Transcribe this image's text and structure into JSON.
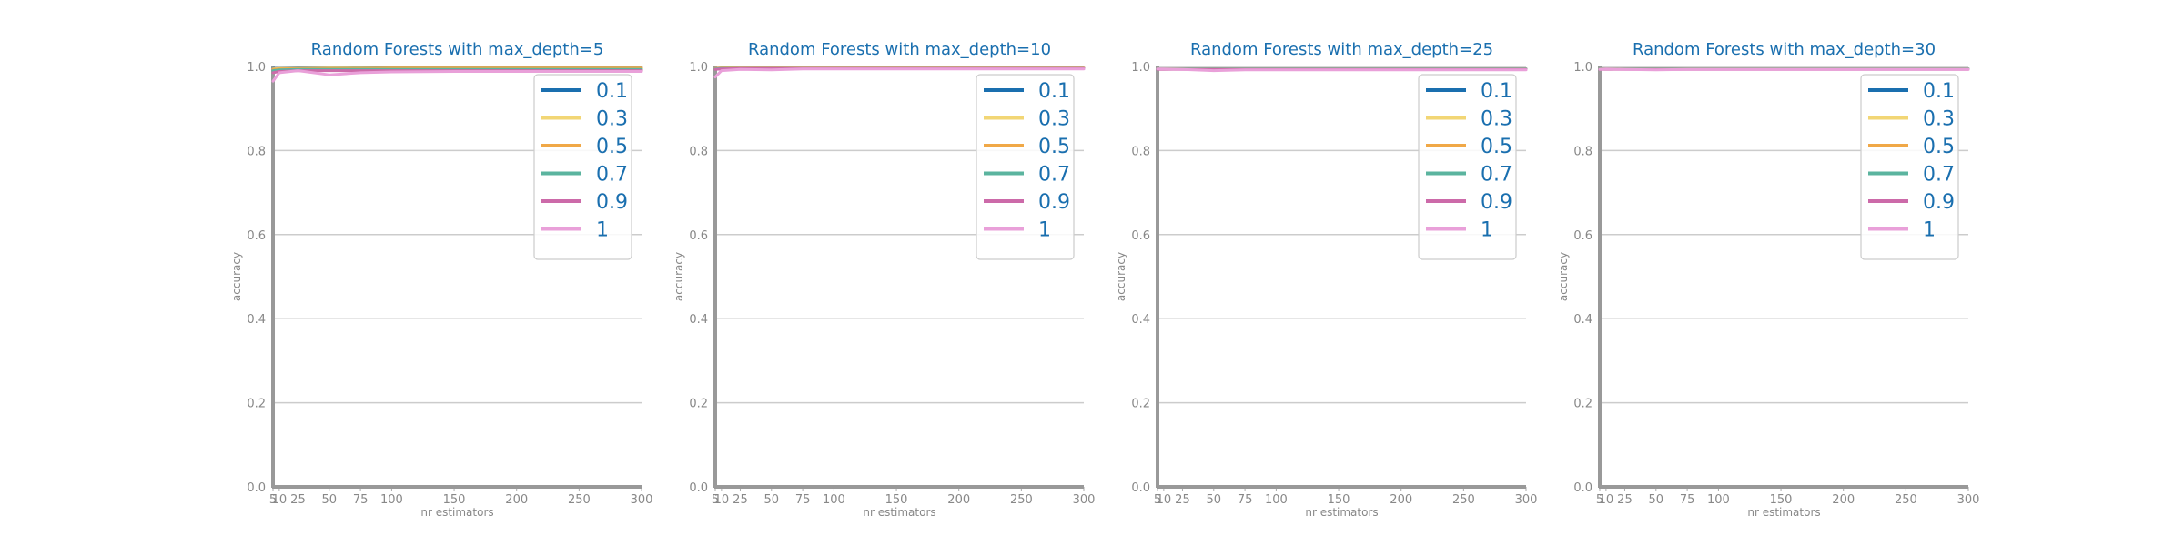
{
  "chart_data": [
    {
      "type": "line",
      "title": "Random Forests with max_depth=5",
      "xlabel": "nr estimators",
      "ylabel": "accuracy",
      "x": [
        5,
        10,
        25,
        50,
        75,
        100,
        150,
        200,
        250,
        300
      ],
      "xticks": [
        "5",
        "10",
        "25",
        "50",
        "75",
        "100",
        "150",
        "200",
        "250",
        "300"
      ],
      "yticks": [
        "0.0",
        "0.2",
        "0.4",
        "0.6",
        "0.8",
        "1.0"
      ],
      "xlim": [
        5,
        300
      ],
      "ylim": [
        0,
        1
      ],
      "grid": "horizontal",
      "legend_position": "top-right",
      "series": [
        {
          "name": "0.1",
          "color": "#1a6faf",
          "values": [
            0.995,
            0.995,
            0.996,
            0.996,
            0.997,
            0.997,
            0.997,
            0.997,
            0.997,
            0.997
          ]
        },
        {
          "name": "0.3",
          "color": "#f2d675",
          "values": [
            0.994,
            0.995,
            0.995,
            0.996,
            0.996,
            0.996,
            0.996,
            0.996,
            0.996,
            0.996
          ]
        },
        {
          "name": "0.5",
          "color": "#f0a847",
          "values": [
            0.993,
            0.994,
            0.995,
            0.995,
            0.995,
            0.996,
            0.996,
            0.996,
            0.996,
            0.996
          ]
        },
        {
          "name": "0.7",
          "color": "#5bb49f",
          "values": [
            0.99,
            0.992,
            0.993,
            0.993,
            0.993,
            0.993,
            0.993,
            0.993,
            0.993,
            0.993
          ]
        },
        {
          "name": "0.9",
          "color": "#cc6aa9",
          "values": [
            0.985,
            0.988,
            0.99,
            0.99,
            0.99,
            0.99,
            0.99,
            0.99,
            0.99,
            0.99
          ]
        },
        {
          "name": "1",
          "color": "#e9a0d9",
          "values": [
            0.965,
            0.985,
            0.99,
            0.98,
            0.985,
            0.987,
            0.988,
            0.988,
            0.988,
            0.988
          ]
        }
      ]
    },
    {
      "type": "line",
      "title": "Random Forests with max_depth=10",
      "xlabel": "nr estimators",
      "ylabel": "accuracy",
      "x": [
        5,
        10,
        25,
        50,
        75,
        100,
        150,
        200,
        250,
        300
      ],
      "xticks": [
        "5",
        "10",
        "25",
        "50",
        "75",
        "100",
        "150",
        "200",
        "250",
        "300"
      ],
      "yticks": [
        "0.0",
        "0.2",
        "0.4",
        "0.6",
        "0.8",
        "1.0"
      ],
      "xlim": [
        5,
        300
      ],
      "ylim": [
        0,
        1
      ],
      "grid": "horizontal",
      "legend_position": "top-right",
      "series": [
        {
          "name": "0.1",
          "color": "#1a6faf",
          "values": [
            0.995,
            0.996,
            0.996,
            0.996,
            0.996,
            0.996,
            0.996,
            0.996,
            0.996,
            0.996
          ]
        },
        {
          "name": "0.3",
          "color": "#f2d675",
          "values": [
            0.995,
            0.996,
            0.996,
            0.996,
            0.996,
            0.996,
            0.996,
            0.996,
            0.996,
            0.996
          ]
        },
        {
          "name": "0.5",
          "color": "#f0a847",
          "values": [
            0.995,
            0.996,
            0.996,
            0.996,
            0.996,
            0.996,
            0.996,
            0.996,
            0.996,
            0.996
          ]
        },
        {
          "name": "0.7",
          "color": "#5bb49f",
          "values": [
            0.994,
            0.995,
            0.995,
            0.995,
            0.995,
            0.995,
            0.995,
            0.995,
            0.995,
            0.995
          ]
        },
        {
          "name": "0.9",
          "color": "#cc6aa9",
          "values": [
            0.993,
            0.994,
            0.995,
            0.995,
            0.995,
            0.995,
            0.995,
            0.995,
            0.995,
            0.995
          ]
        },
        {
          "name": "1",
          "color": "#e9a0d9",
          "values": [
            0.975,
            0.99,
            0.993,
            0.992,
            0.994,
            0.994,
            0.994,
            0.994,
            0.994,
            0.994
          ]
        }
      ]
    },
    {
      "type": "line",
      "title": "Random Forests with max_depth=25",
      "xlabel": "nr estimators",
      "ylabel": "accuracy",
      "x": [
        5,
        10,
        25,
        50,
        75,
        100,
        150,
        200,
        250,
        300
      ],
      "xticks": [
        "5",
        "10",
        "25",
        "50",
        "75",
        "100",
        "150",
        "200",
        "250",
        "300"
      ],
      "yticks": [
        "0.0",
        "0.2",
        "0.4",
        "0.6",
        "0.8",
        "1.0"
      ],
      "xlim": [
        5,
        300
      ],
      "ylim": [
        0,
        1
      ],
      "grid": "horizontal",
      "legend_position": "top-right",
      "series": [
        {
          "name": "0.1",
          "color": "#1a6faf",
          "values": [
            0.994,
            0.994,
            0.994,
            0.994,
            0.994,
            0.994,
            0.994,
            0.994,
            0.994,
            0.994
          ]
        },
        {
          "name": "0.3",
          "color": "#f2d675",
          "values": [
            0.994,
            0.994,
            0.994,
            0.994,
            0.994,
            0.994,
            0.994,
            0.994,
            0.994,
            0.994
          ]
        },
        {
          "name": "0.5",
          "color": "#f0a847",
          "values": [
            0.994,
            0.994,
            0.994,
            0.994,
            0.994,
            0.994,
            0.994,
            0.994,
            0.994,
            0.994
          ]
        },
        {
          "name": "0.7",
          "color": "#5bb49f",
          "values": [
            0.994,
            0.994,
            0.994,
            0.994,
            0.994,
            0.994,
            0.994,
            0.994,
            0.994,
            0.994
          ]
        },
        {
          "name": "0.9",
          "color": "#cc6aa9",
          "values": [
            0.993,
            0.993,
            0.993,
            0.993,
            0.993,
            0.993,
            0.993,
            0.993,
            0.993,
            0.993
          ]
        },
        {
          "name": "1",
          "color": "#e9a0d9",
          "values": [
            0.994,
            0.994,
            0.993,
            0.99,
            0.992,
            0.992,
            0.992,
            0.992,
            0.992,
            0.992
          ]
        }
      ]
    },
    {
      "type": "line",
      "title": "Random Forests with max_depth=30",
      "xlabel": "nr estimators",
      "ylabel": "accuracy",
      "x": [
        5,
        10,
        25,
        50,
        75,
        100,
        150,
        200,
        250,
        300
      ],
      "xticks": [
        "5",
        "10",
        "25",
        "50",
        "75",
        "100",
        "150",
        "200",
        "250",
        "300"
      ],
      "yticks": [
        "0.0",
        "0.2",
        "0.4",
        "0.6",
        "0.8",
        "1.0"
      ],
      "xlim": [
        5,
        300
      ],
      "ylim": [
        0,
        1
      ],
      "grid": "horizontal",
      "legend_position": "top-right",
      "series": [
        {
          "name": "0.1",
          "color": "#1a6faf",
          "values": [
            0.994,
            0.994,
            0.994,
            0.994,
            0.994,
            0.994,
            0.994,
            0.994,
            0.994,
            0.994
          ]
        },
        {
          "name": "0.3",
          "color": "#f2d675",
          "values": [
            0.994,
            0.994,
            0.994,
            0.994,
            0.994,
            0.994,
            0.994,
            0.994,
            0.994,
            0.994
          ]
        },
        {
          "name": "0.5",
          "color": "#f0a847",
          "values": [
            0.994,
            0.994,
            0.994,
            0.994,
            0.994,
            0.994,
            0.994,
            0.994,
            0.994,
            0.994
          ]
        },
        {
          "name": "0.7",
          "color": "#5bb49f",
          "values": [
            0.994,
            0.994,
            0.994,
            0.994,
            0.994,
            0.994,
            0.994,
            0.994,
            0.994,
            0.994
          ]
        },
        {
          "name": "0.9",
          "color": "#cc6aa9",
          "values": [
            0.993,
            0.993,
            0.993,
            0.993,
            0.993,
            0.993,
            0.993,
            0.993,
            0.993,
            0.993
          ]
        },
        {
          "name": "1",
          "color": "#e9a0d9",
          "values": [
            0.993,
            0.994,
            0.993,
            0.992,
            0.993,
            0.993,
            0.993,
            0.993,
            0.993,
            0.993
          ]
        }
      ]
    }
  ]
}
